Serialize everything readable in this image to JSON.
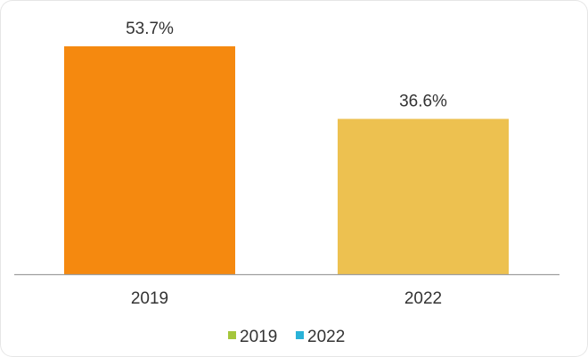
{
  "colors": {
    "bar_2019": "#f5890f",
    "bar_2022": "#edc150",
    "legend_2019": "#a5c63b",
    "legend_2022": "#29b2d8",
    "axis": "#9e9e9e",
    "text": "#333333"
  },
  "chart_data": {
    "type": "bar",
    "categories": [
      "2019",
      "2022"
    ],
    "values": [
      53.7,
      36.6
    ],
    "data_labels": [
      "53.7%",
      "36.6%"
    ],
    "value_unit": "%",
    "ylim": [
      0,
      60
    ],
    "grid": false,
    "legend": {
      "position": "bottom",
      "entries": [
        "2019",
        "2022"
      ]
    }
  }
}
